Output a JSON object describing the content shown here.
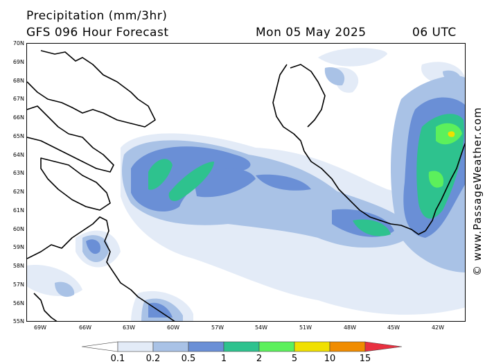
{
  "header": {
    "title": "Precipitation (mm/3hr)",
    "model": "GFS 096 Hour Forecast",
    "date": "Mon 05 May 2025",
    "time": "06 UTC"
  },
  "credit": "© www.PassageWeather.com",
  "axes": {
    "lat_labels": [
      "70N",
      "69N",
      "68N",
      "67N",
      "66N",
      "65N",
      "64N",
      "63N",
      "62N",
      "61N",
      "60N",
      "59N",
      "58N",
      "57N",
      "56N",
      "55N"
    ],
    "lon_labels": [
      "69W",
      "66W",
      "63W",
      "60W",
      "57W",
      "54W",
      "51W",
      "48W",
      "45W",
      "42W"
    ]
  },
  "legend": {
    "labels": [
      "0.1",
      "0.2",
      "0.5",
      "1",
      "2",
      "5",
      "10",
      "15"
    ],
    "colors": [
      "#ffffff",
      "#e3ebf7",
      "#a9c2e6",
      "#6a8fd6",
      "#2ec28e",
      "#5cf05c",
      "#f0e000",
      "#f08c00",
      "#e83040"
    ]
  },
  "colors": {
    "coastline": "#000000",
    "land_bg": "#ffffff"
  }
}
